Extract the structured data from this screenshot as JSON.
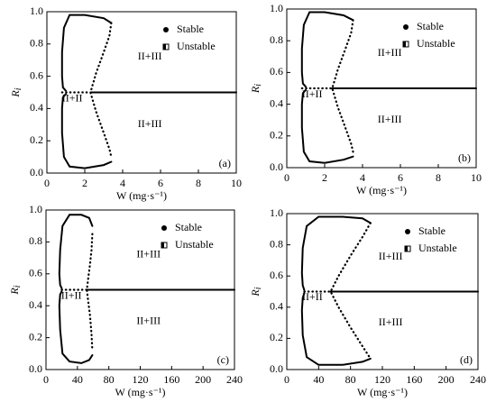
{
  "chart_data": [
    {
      "type": "line",
      "xlabel": "W (mg·s⁻¹)",
      "ylabel": "R",
      "ylabel_subscript": "i",
      "xlim": [
        0,
        10
      ],
      "xticks": [
        0,
        2,
        4,
        6,
        8,
        10
      ],
      "ylim": [
        0,
        1
      ],
      "yticks": [
        {
          "value": 0,
          "label": "0.0"
        },
        0.2,
        0.4,
        0.6,
        0.8,
        {
          "value": 1,
          "label": "1.0"
        }
      ],
      "legend": "upper right",
      "annotations": [
        "II+II",
        "II+III",
        "II+III"
      ],
      "panel_label": "(a)",
      "series": [
        {
          "name": "Stable",
          "color": "#000000",
          "style": "solid",
          "x": [
            3.4,
            3.0,
            2.0,
            1.2,
            0.9,
            0.8,
            0.8,
            0.85,
            1.0,
            null,
            1.0,
            0.85,
            0.8,
            0.8,
            0.9,
            1.2,
            2.0,
            3.0,
            3.4,
            null,
            2.3,
            10
          ],
          "values": [
            0.93,
            0.96,
            0.98,
            0.98,
            0.9,
            0.75,
            0.6,
            0.53,
            0.51,
            null,
            0.49,
            0.47,
            0.4,
            0.25,
            0.1,
            0.04,
            0.03,
            0.05,
            0.07,
            null,
            0.5,
            0.5
          ]
        },
        {
          "name": "Unstable",
          "color": "#000000",
          "style": "dotted",
          "x": [
            3.4,
            3.3,
            3.0,
            2.6,
            2.3,
            2.6,
            3.0,
            3.3,
            3.4,
            null,
            0.8,
            2.3
          ],
          "values": [
            0.93,
            0.85,
            0.75,
            0.62,
            0.5,
            0.38,
            0.25,
            0.15,
            0.1,
            null,
            0.5,
            0.5
          ]
        }
      ]
    },
    {
      "type": "line",
      "xlabel": "W (mg·s⁻¹)",
      "ylabel": "R",
      "ylabel_subscript": "i",
      "xlim": [
        0,
        10
      ],
      "xticks": [
        0,
        2,
        4,
        6,
        8,
        10
      ],
      "ylim": [
        0,
        1
      ],
      "yticks": [
        {
          "value": 0,
          "label": "0.0"
        },
        0.2,
        0.4,
        0.6,
        0.8,
        {
          "value": 1,
          "label": "1.0"
        }
      ],
      "legend": "upper right",
      "annotations": [
        "II+II",
        "II+III",
        "II+III"
      ],
      "panel_label": "(b)",
      "series": [
        {
          "name": "Stable",
          "color": "#000000",
          "style": "solid",
          "x": [
            3.5,
            3.0,
            2.0,
            1.2,
            0.9,
            0.8,
            0.8,
            0.85,
            1.0,
            null,
            1.0,
            0.85,
            0.8,
            0.8,
            0.9,
            1.2,
            2.0,
            3.0,
            3.5,
            null,
            2.4,
            10
          ],
          "values": [
            0.93,
            0.96,
            0.98,
            0.98,
            0.9,
            0.75,
            0.6,
            0.53,
            0.51,
            null,
            0.49,
            0.47,
            0.4,
            0.25,
            0.1,
            0.04,
            0.03,
            0.05,
            0.07,
            null,
            0.5,
            0.5
          ]
        },
        {
          "name": "Unstable",
          "color": "#000000",
          "style": "dotted",
          "x": [
            3.5,
            3.4,
            3.1,
            2.7,
            2.4,
            2.7,
            3.1,
            3.4,
            3.5,
            null,
            0.8,
            2.4
          ],
          "values": [
            0.93,
            0.85,
            0.75,
            0.62,
            0.5,
            0.38,
            0.25,
            0.15,
            0.1,
            null,
            0.5,
            0.5
          ]
        }
      ]
    },
    {
      "type": "line",
      "xlabel": "W (mg·s⁻¹)",
      "ylabel": "R",
      "ylabel_subscript": "i",
      "xlim": [
        0,
        240
      ],
      "xticks": [
        0,
        40,
        80,
        120,
        160,
        200,
        240
      ],
      "ylim": [
        0,
        1
      ],
      "yticks": [
        {
          "value": 0,
          "label": "0.0"
        },
        0.2,
        0.4,
        0.6,
        0.8,
        {
          "value": 1,
          "label": "1.0"
        }
      ],
      "legend": "upper right",
      "annotations": [
        "II+II",
        "II+III",
        "II+III"
      ],
      "panel_label": "(c)",
      "series": [
        {
          "name": "Stable",
          "color": "#000000",
          "style": "solid",
          "x": [
            59,
            55,
            45,
            30,
            21,
            18,
            17,
            18,
            20,
            null,
            20,
            18,
            17,
            18,
            21,
            30,
            45,
            55,
            59,
            null,
            52,
            240
          ],
          "values": [
            0.9,
            0.95,
            0.97,
            0.97,
            0.9,
            0.75,
            0.6,
            0.53,
            0.51,
            null,
            0.49,
            0.47,
            0.4,
            0.25,
            0.1,
            0.05,
            0.04,
            0.06,
            0.09,
            null,
            0.5,
            0.5
          ]
        },
        {
          "name": "Unstable",
          "color": "#000000",
          "style": "dotted",
          "x": [
            59,
            58,
            56,
            54,
            52,
            54,
            56,
            58,
            59,
            null,
            20,
            52
          ],
          "values": [
            0.85,
            0.75,
            0.66,
            0.58,
            0.5,
            0.42,
            0.34,
            0.22,
            0.12,
            null,
            0.5,
            0.5
          ]
        }
      ]
    },
    {
      "type": "line",
      "xlabel": "W (mg·s⁻¹)",
      "ylabel": "R",
      "ylabel_subscript": "i",
      "xlim": [
        0,
        240
      ],
      "xticks": [
        0,
        40,
        80,
        120,
        160,
        200,
        240
      ],
      "ylim": [
        0,
        1
      ],
      "yticks": [
        {
          "value": 0,
          "label": "0.0"
        },
        0.2,
        0.4,
        0.6,
        0.8,
        {
          "value": 1,
          "label": "1.0"
        }
      ],
      "legend": "upper right",
      "annotations": [
        "II+II",
        "II+III",
        "II+III"
      ],
      "panel_label": "(d)",
      "series": [
        {
          "name": "Stable",
          "color": "#000000",
          "style": "solid",
          "x": [
            105,
            95,
            70,
            40,
            25,
            20,
            19,
            20,
            22,
            null,
            22,
            20,
            19,
            20,
            25,
            40,
            70,
            95,
            105,
            null,
            55,
            240
          ],
          "values": [
            0.94,
            0.97,
            0.98,
            0.98,
            0.92,
            0.78,
            0.62,
            0.54,
            0.51,
            null,
            0.49,
            0.46,
            0.38,
            0.22,
            0.08,
            0.03,
            0.03,
            0.05,
            0.07,
            null,
            0.5,
            0.5
          ]
        },
        {
          "name": "Unstable",
          "color": "#000000",
          "style": "dotted",
          "x": [
            105,
            95,
            80,
            65,
            55,
            65,
            80,
            95,
            105,
            null,
            22,
            55
          ],
          "values": [
            0.94,
            0.85,
            0.73,
            0.6,
            0.5,
            0.4,
            0.27,
            0.15,
            0.07,
            null,
            0.5,
            0.5
          ]
        }
      ]
    }
  ]
}
